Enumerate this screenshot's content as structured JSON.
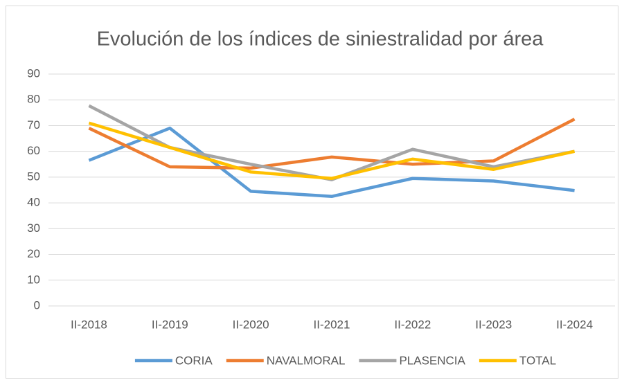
{
  "chart_data": {
    "type": "line",
    "title": "Evolución de los índices de siniestralidad por área",
    "categories": [
      "II-2018",
      "II-2019",
      "II-2020",
      "II-2021",
      "II-2022",
      "II-2023",
      "II-2024"
    ],
    "series": [
      {
        "name": "CORIA",
        "color": "#5b9bd5",
        "values": [
          56.5,
          69,
          44.5,
          42.5,
          49.5,
          48.5,
          44.8
        ]
      },
      {
        "name": "NAVALMORAL",
        "color": "#ed7d31",
        "values": [
          69,
          54,
          53.5,
          57.8,
          55,
          56.3,
          72.5
        ]
      },
      {
        "name": "PLASENCIA",
        "color": "#a5a5a5",
        "values": [
          77.7,
          61.5,
          55,
          49,
          60.8,
          54,
          60
        ]
      },
      {
        "name": "TOTAL",
        "color": "#ffc000",
        "values": [
          71,
          61.5,
          52,
          49.5,
          57,
          53,
          60
        ]
      }
    ],
    "ylim": [
      0,
      90
    ],
    "yticks": [
      0,
      10,
      20,
      30,
      40,
      50,
      60,
      70,
      80,
      90
    ],
    "grid": true,
    "legend": "bottom"
  }
}
